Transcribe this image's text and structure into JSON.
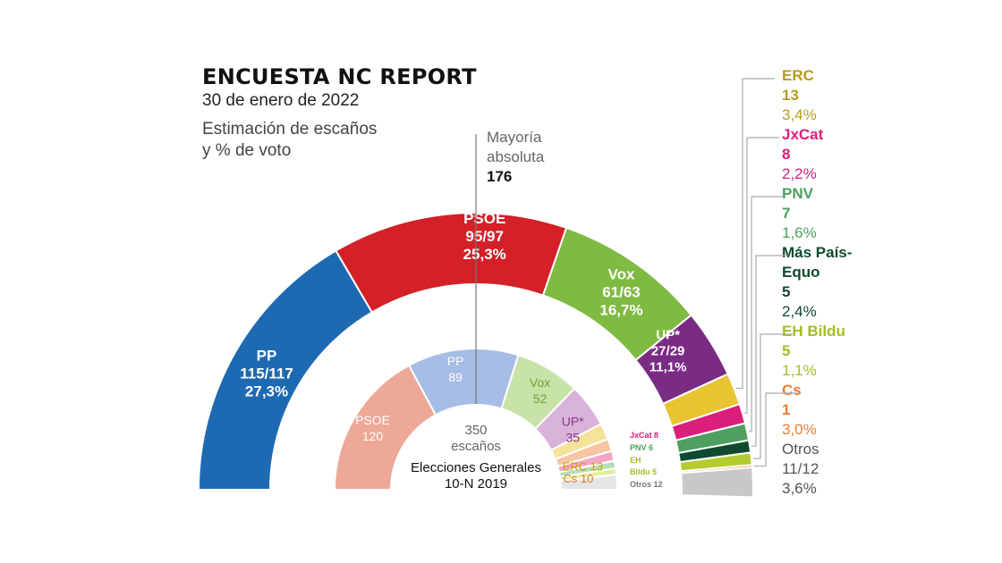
{
  "header": {
    "title": "ENCUESTA NC REPORT",
    "date": "30 de enero de 2022",
    "subtitle_line1": "Estimación de escaños",
    "subtitle_line2": "y % de voto"
  },
  "majority": {
    "label_line1": "Mayoría",
    "label_line2": "absoluta",
    "value": "176"
  },
  "center": {
    "seats_number": "350",
    "seats_word": "escaños",
    "election_line1": "Elecciones Generales",
    "election_line2": "10-N 2019"
  },
  "chart_data": [
    {
      "type": "hemicycle",
      "title": "Estimación de escaños y % de voto",
      "total_seats": 350,
      "majority": 176,
      "series": [
        {
          "party": "PP",
          "seats": "115/117",
          "seats_plot": 116,
          "vote_pct": "27,3%",
          "color": "#1e6ab2",
          "text_color": "#ffffff"
        },
        {
          "party": "PSOE",
          "seats": "95/97",
          "seats_plot": 96,
          "vote_pct": "25,3%",
          "color": "#d42027",
          "text_color": "#ffffff"
        },
        {
          "party": "Vox",
          "seats": "61/63",
          "seats_plot": 62,
          "vote_pct": "16,7%",
          "color": "#7fba42",
          "text_color": "#ffffff"
        },
        {
          "party": "UP*",
          "seats": "27/29",
          "seats_plot": 28,
          "vote_pct": "11,1%",
          "color": "#7a2b83",
          "text_color": "#ffffff"
        },
        {
          "party": "ERC",
          "seats": "13",
          "seats_plot": 13,
          "vote_pct": "3,4%",
          "color": "#e8c431",
          "text_color": "#b59c1c"
        },
        {
          "party": "JxCat",
          "seats": "8",
          "seats_plot": 8,
          "vote_pct": "2,2%",
          "color": "#d91e7b",
          "text_color": "#d91e7b"
        },
        {
          "party": "PNV",
          "seats": "7",
          "seats_plot": 7,
          "vote_pct": "1,6%",
          "color": "#4fa060",
          "text_color": "#4fa060"
        },
        {
          "party": "Más País-Equo",
          "seats": "5",
          "seats_plot": 5,
          "vote_pct": "2,4%",
          "color": "#0f4a2e",
          "text_color": "#0f4a2e"
        },
        {
          "party": "EH Bildu",
          "seats": "5",
          "seats_plot": 5,
          "vote_pct": "1,1%",
          "color": "#b5cc2e",
          "text_color": "#a6bd22"
        },
        {
          "party": "Cs",
          "seats": "1",
          "seats_plot": 1,
          "vote_pct": "3,0%",
          "color": "#ea7d33",
          "text_color": "#ea7d33"
        },
        {
          "party": "Otros",
          "seats": "11/12",
          "seats_plot": 12,
          "vote_pct": "3,6%",
          "color": "#c8c8c8",
          "text_color": "#555555"
        }
      ]
    },
    {
      "type": "hemicycle",
      "title": "Elecciones Generales 10-N 2019",
      "total_seats": 350,
      "series": [
        {
          "party": "PSOE",
          "seats": 120,
          "color": "#eea897"
        },
        {
          "party": "PP",
          "seats": 89,
          "color": "#a6bde6"
        },
        {
          "party": "Vox",
          "seats": 52,
          "color": "#c8e3a7"
        },
        {
          "party": "UP*",
          "seats": 35,
          "color": "#d8b2d8"
        },
        {
          "party": "ERC",
          "seats": 13,
          "color": "#f6e39a"
        },
        {
          "party": "Cs",
          "seats": 10,
          "color": "#f7c5a1"
        },
        {
          "party": "JxCat",
          "seats": 8,
          "color": "#f5a6c7"
        },
        {
          "party": "PNV",
          "seats": 6,
          "color": "#b4ddb9"
        },
        {
          "party": "EH Bildu",
          "seats": 5,
          "color": "#e5ef9d"
        },
        {
          "party": "Otros",
          "seats": 12,
          "color": "#e6e6e6"
        }
      ],
      "labels": {
        "PSOE": [
          "PSOE",
          "120"
        ],
        "PP": [
          "PP",
          "89"
        ],
        "Vox": [
          "Vox",
          "52"
        ],
        "UP*": [
          "UP*",
          "35"
        ],
        "ERC": "ERC 13",
        "Cs": "Cs 10",
        "JxCat": "JxCat 8",
        "PNV": "PNV 6",
        "EH1": "EH",
        "EH2": "Bildu 5",
        "Otros": "Otros 12"
      }
    }
  ],
  "legend": {
    "ERC": {
      "name": "ERC",
      "seats": "13",
      "pct": "3,4%"
    },
    "JxCat": {
      "name": "JxCat",
      "seats": "8",
      "pct": "2,2%"
    },
    "PNV": {
      "name": "PNV",
      "seats": "7",
      "pct": "1,6%"
    },
    "MasPais": {
      "name1": "Más País-",
      "name2": "Equo",
      "seats": "5",
      "pct": "2,4%"
    },
    "Bildu": {
      "name": "EH Bildu",
      "seats": "5",
      "pct": "1,1%"
    },
    "Cs": {
      "name": "Cs",
      "seats": "1",
      "pct": "3,0%"
    },
    "Otros": {
      "name": "Otros",
      "seats": "11/12",
      "pct": "3,6%"
    }
  }
}
